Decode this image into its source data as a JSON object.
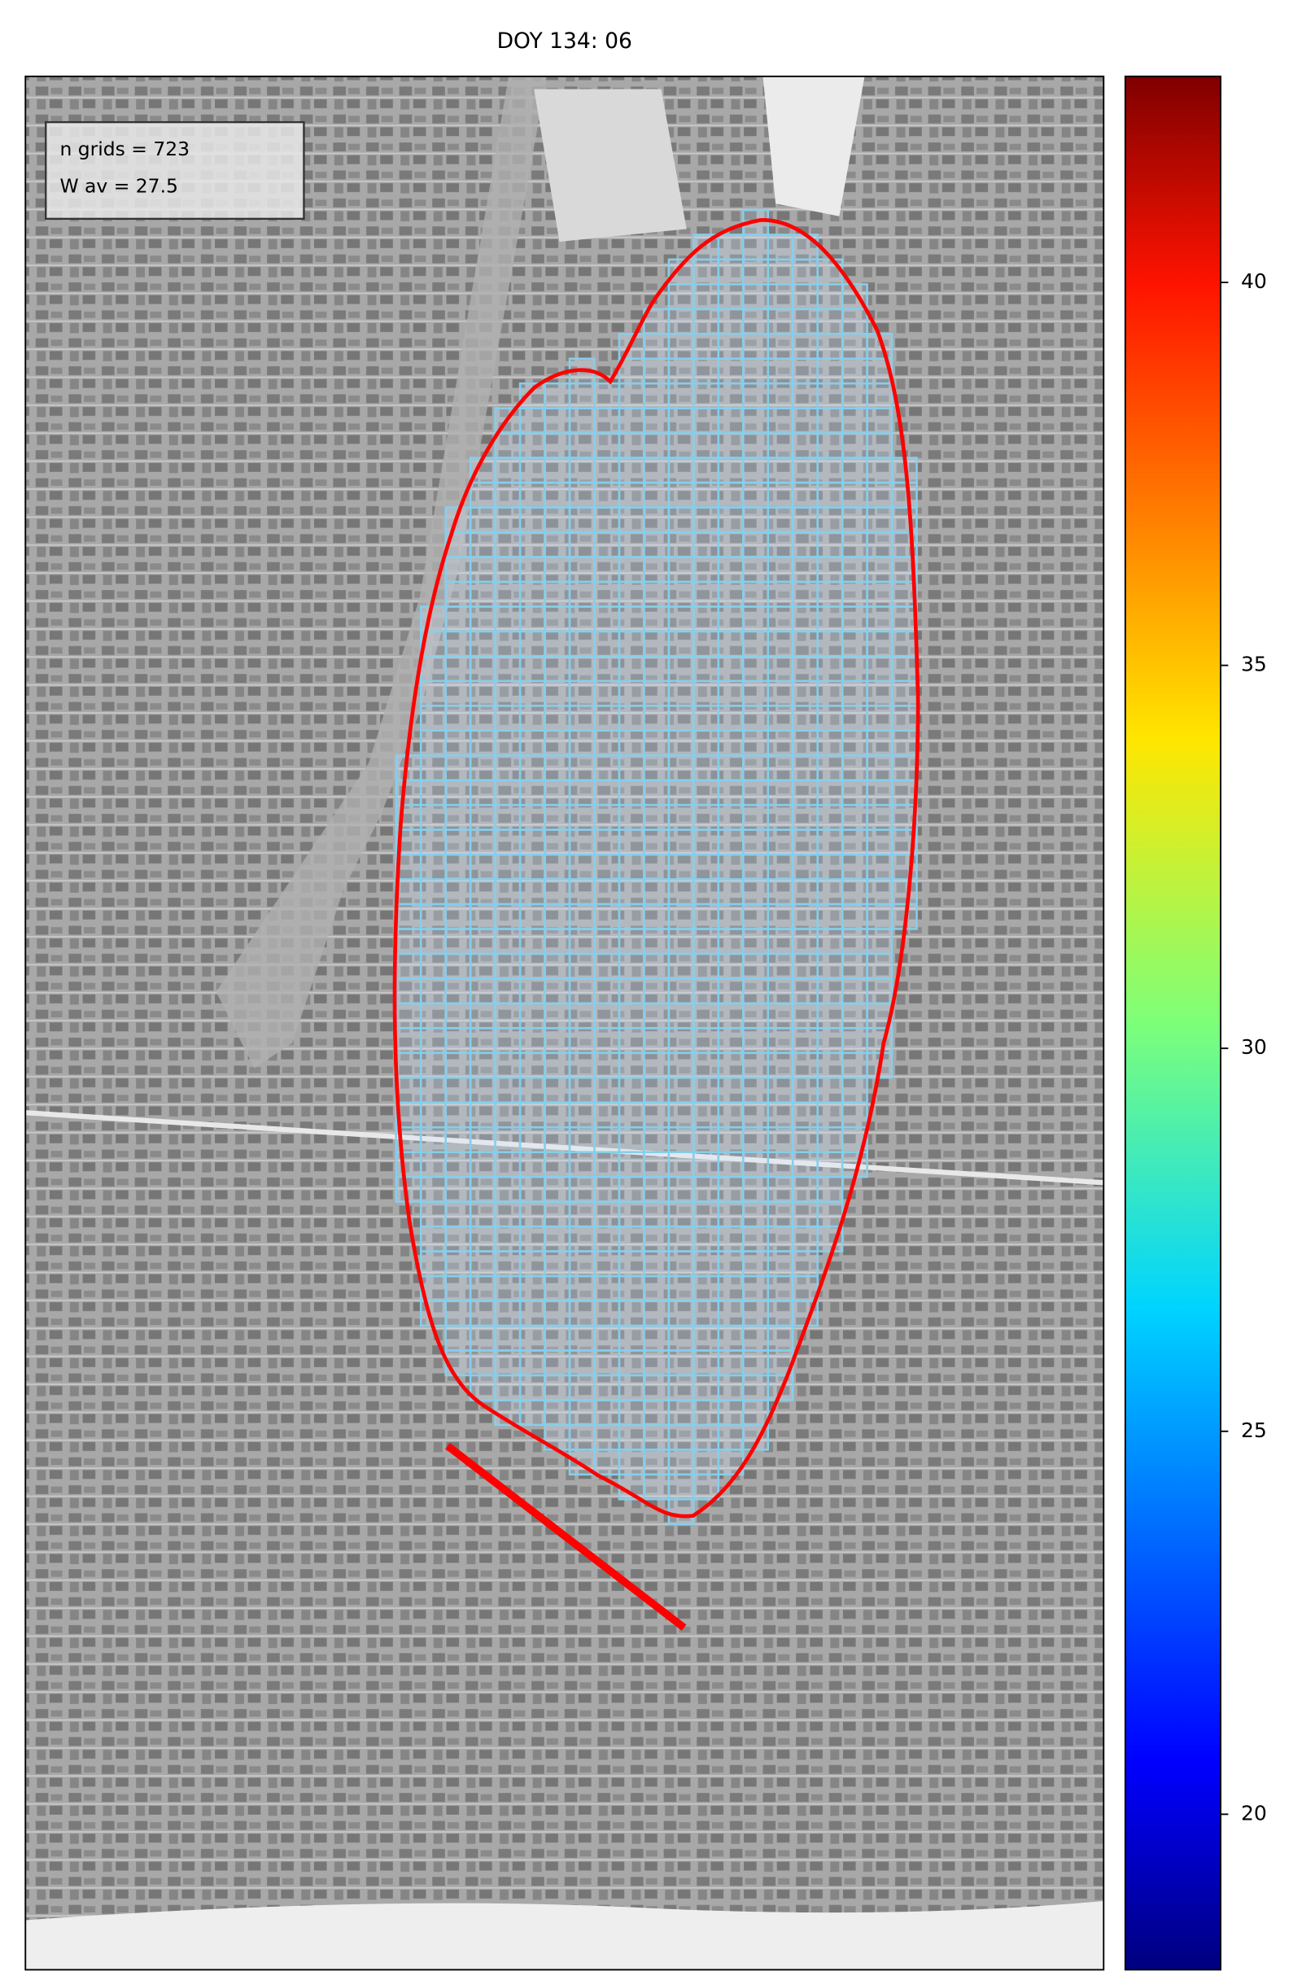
{
  "title": "DOY 134: 06",
  "annotation_lines": [
    "n grids = 723",
    "W av = 27.5"
  ],
  "colorbar": {
    "lim": [
      17.97,
      42.69
    ],
    "ticks": [
      20,
      25,
      30,
      35,
      40
    ]
  }
}
